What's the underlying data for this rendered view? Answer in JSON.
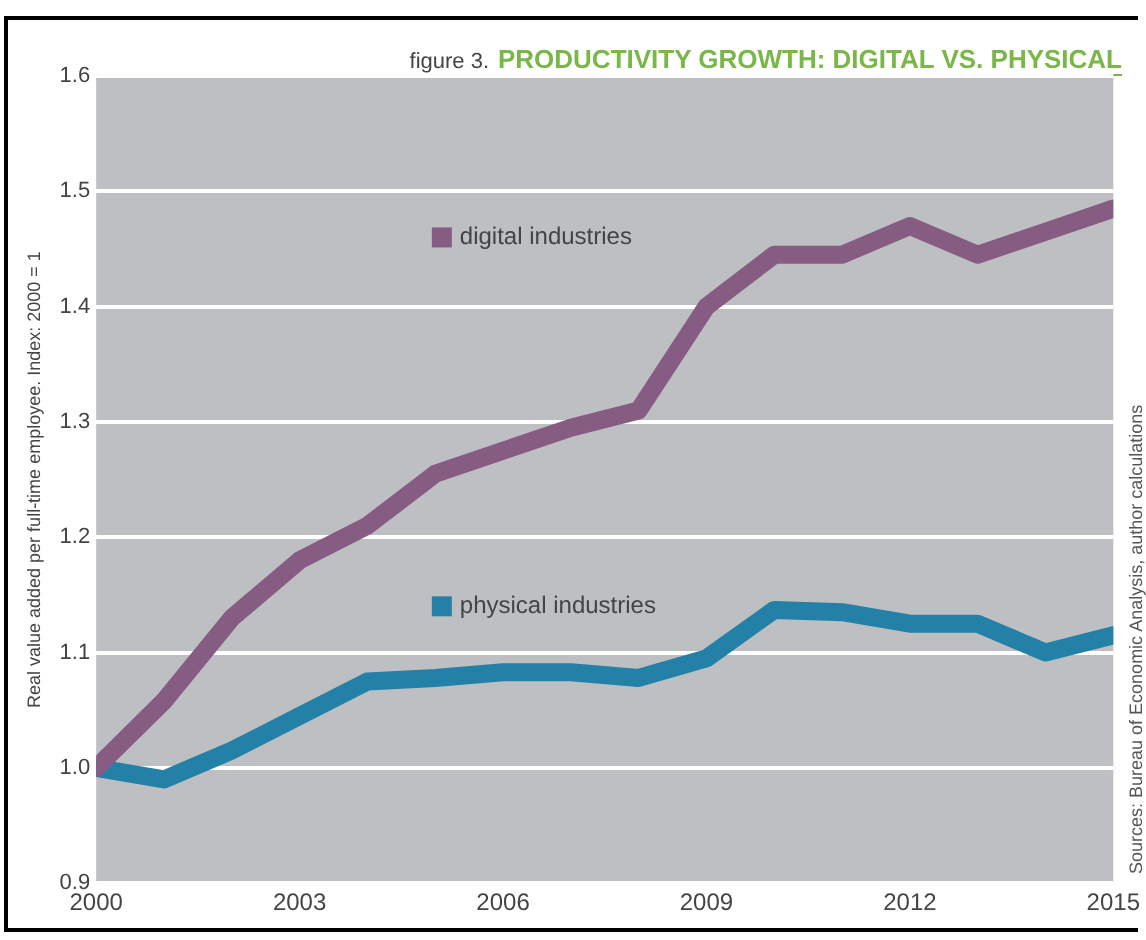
{
  "chart_data": {
    "type": "line",
    "subtitle": "figure 3.",
    "title": "PRODUCTIVITY GROWTH: DIGITAL VS. PHYSICAL",
    "ylabel": "Real value added per full-time employee. Index: 2000 = 1",
    "annotations": [
      "Sources: Bureau of Economic Analysis, author calculations"
    ],
    "x": [
      2000,
      2001,
      2002,
      2003,
      2004,
      2005,
      2006,
      2007,
      2008,
      2009,
      2010,
      2011,
      2012,
      2013,
      2014,
      2015
    ],
    "series": [
      {
        "name": "digital industries",
        "color": "#875c82",
        "values": [
          1.0,
          1.058,
          1.13,
          1.18,
          1.21,
          1.255,
          1.275,
          1.295,
          1.31,
          1.4,
          1.445,
          1.445,
          1.47,
          1.445,
          1.465,
          1.485
        ]
      },
      {
        "name": "physical industries",
        "color": "#2380a6",
        "values": [
          1.0,
          0.99,
          1.015,
          1.045,
          1.075,
          1.078,
          1.083,
          1.083,
          1.078,
          1.095,
          1.137,
          1.135,
          1.125,
          1.125,
          1.1,
          1.115
        ]
      }
    ],
    "xlim": [
      2000,
      2015
    ],
    "xticks": [
      2000,
      2003,
      2006,
      2009,
      2012,
      2015
    ],
    "ylim": [
      0.9,
      1.6
    ],
    "yticks": [
      0.9,
      {
        "value": 1,
        "label": "1.0"
      },
      1.1,
      1.2,
      1.3,
      1.4,
      1.5,
      1.6
    ],
    "grid": "y",
    "legend": "top left",
    "marker": "none",
    "line_style": "solid"
  }
}
